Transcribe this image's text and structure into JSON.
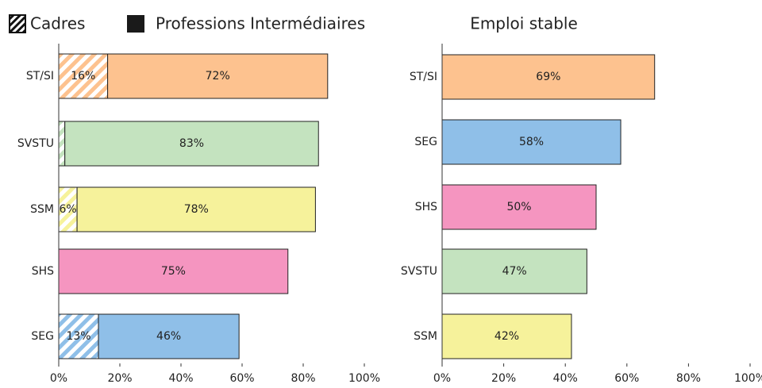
{
  "chart_data": [
    {
      "type": "stacked-barh",
      "categories": [
        "ST/SI",
        "SVSTU",
        "SSM",
        "SHS",
        "SEG"
      ],
      "colors": [
        "#fdc28f",
        "#c4e3bf",
        "#f6f29b",
        "#f595c0",
        "#8fbfe8"
      ],
      "series": [
        {
          "name": "Cadres",
          "pattern": "hatch",
          "values": [
            16,
            2,
            6,
            0,
            13
          ],
          "value_labels": [
            "16%",
            null,
            "6%",
            null,
            "13%"
          ]
        },
        {
          "name": "Professions Intermédiaires",
          "pattern": "solid",
          "values": [
            72,
            83,
            78,
            75,
            46
          ],
          "value_labels": [
            "72%",
            "83%",
            "78%",
            "75%",
            "46%"
          ]
        }
      ],
      "xlim": [
        0,
        100
      ],
      "xticks": [
        {
          "value": 0,
          "label": "0%"
        },
        {
          "value": 20,
          "label": "20%"
        },
        {
          "value": 40,
          "label": "40%"
        },
        {
          "value": 60,
          "label": "60%"
        },
        {
          "value": 80,
          "label": "80%"
        },
        {
          "value": 100,
          "label": "100%"
        }
      ]
    },
    {
      "type": "barh",
      "title": "Emploi stable",
      "categories": [
        "ST/SI",
        "SEG",
        "SHS",
        "SVSTU",
        "SSM"
      ],
      "colors": [
        "#fdc28f",
        "#8fbfe8",
        "#f595c0",
        "#c4e3bf",
        "#f6f29b"
      ],
      "values": [
        69,
        58,
        50,
        47,
        42
      ],
      "value_labels": [
        "69%",
        "58%",
        "50%",
        "47%",
        "42%"
      ],
      "xlim": [
        0,
        100
      ],
      "xticks": [
        {
          "value": 0,
          "label": "0%"
        },
        {
          "value": 20,
          "label": "20%"
        },
        {
          "value": 40,
          "label": "40%"
        },
        {
          "value": 60,
          "label": "60%"
        },
        {
          "value": 80,
          "label": "80%"
        },
        {
          "value": 100,
          "label": "100%"
        }
      ]
    }
  ]
}
